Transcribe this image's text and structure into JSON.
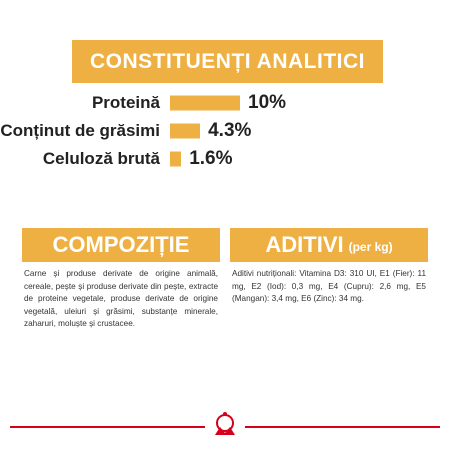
{
  "header": {
    "title": "CONSTITUENȚI ANALITICI"
  },
  "chart_data": {
    "type": "bar",
    "orientation": "horizontal",
    "categories": [
      "Proteină",
      "Conținut de grăsimi",
      "Celuloză brută"
    ],
    "values": [
      10,
      4.3,
      1.6
    ],
    "value_labels": [
      "10%",
      "4.3%",
      "1.6%"
    ],
    "color": "#efb043"
  },
  "composition": {
    "title": "COMPOZIȚIE",
    "text": "Carne și produse derivate de origine animală, cereale, pește și produse derivate din pește, extracte de proteine vegetale, produse derivate de origine vegetală, uleiuri și grăsimi, substanțe minerale, zaharuri, moluște și crustacee."
  },
  "additives": {
    "title": "ADITIVI",
    "subtitle": "(per kg)",
    "text": "Aditivi nutriționali: Vitamina D3: 310 UI, E1 (Fier): 11 mg, E2 (Iod): 0,3 mg, E4 (Cupru): 2,6 mg, E5 (Mangan): 3,4 mg, E6 (Zinc): 34 mg."
  }
}
